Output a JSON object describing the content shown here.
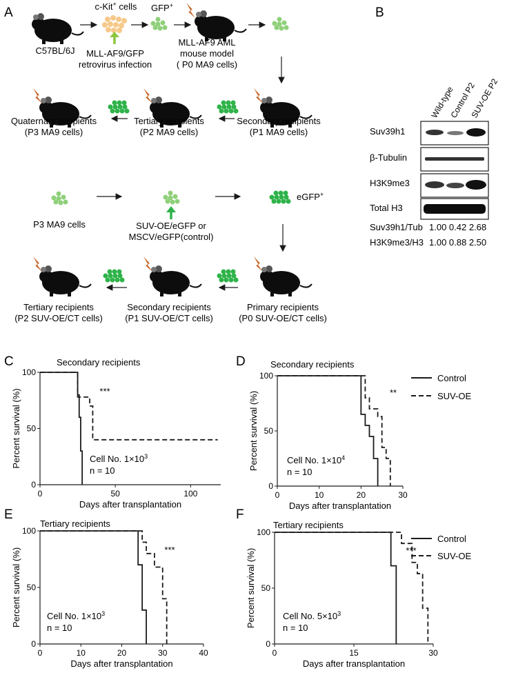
{
  "panel_letters": {
    "a": "A",
    "b": "B",
    "c": "C",
    "d": "D",
    "e": "E",
    "f": "F"
  },
  "schematic1": {
    "mouse_strain": "C57BL/6J",
    "ckit_label": "c-Kit",
    "ckit_sup": "+",
    "ckit_suffix": " cells",
    "gfp_label": "GFP",
    "gfp_sup": "+",
    "infection_line1": "MLL-AF9/GFP",
    "infection_line2": "retrovirus infection",
    "model_line1": "MLL-AF9 AML",
    "model_line2": "mouse model",
    "model_line3": "( P0 MA9 cells)",
    "secondary_line1": "Secondary recipients",
    "secondary_line2": "(P1 MA9 cells)",
    "tertiary_line1": "Tertiary recipients",
    "tertiary_line2": "(P2 MA9 cells)",
    "quaternary_line1": "Quaternary recipients",
    "quaternary_line2": "(P3 MA9 cells)"
  },
  "schematic2": {
    "p3_label": "P3 MA9 cells",
    "vector_line1": "SUV-OE/eGFP or",
    "vector_line2": "MSCV/eGFP(control)",
    "egfp_label": "eGFP",
    "egfp_sup": "+",
    "primary_line1": "Primary recipients",
    "primary_line2": "(P0 SUV-OE/CT cells)",
    "secondary_line1": "Secondary recipients",
    "secondary_line2": "(P1 SUV-OE/CT cells)",
    "tertiary_line1": "Tertiary recipients",
    "tertiary_line2": "(P2 SUV-OE/CT cells)"
  },
  "western": {
    "lanes": [
      "Wild-type",
      "Control  P2",
      "SUV-OE P2"
    ],
    "blots": [
      "Suv39h1",
      "β-Tubulin",
      "H3K9me3",
      "Total H3"
    ],
    "quant": [
      {
        "label": "Suv39h1/Tub",
        "values": "1.00 0.42 2.68"
      },
      {
        "label": "H3K9me3/H3",
        "values": "1.00 0.88 2.50"
      }
    ]
  },
  "legend": {
    "control": "Control",
    "suv": "SUV-OE"
  },
  "chart_data": [
    {
      "panel": "C",
      "type": "line",
      "title": "Secondary recipients",
      "xlabel": "Days after transplantation",
      "ylabel": "Percent survival (%)",
      "xlim": [
        0,
        120
      ],
      "ylim": [
        0,
        100
      ],
      "xticks": [
        0,
        50,
        100
      ],
      "yticks": [
        0,
        50,
        100
      ],
      "significance": "***",
      "cell_no": "Cell No. 1×10",
      "cell_exp": "3",
      "n": "n = 10",
      "series": [
        {
          "name": "Control",
          "style": "solid",
          "x": [
            0,
            25,
            25,
            26,
            27,
            28
          ],
          "y": [
            100,
            100,
            80,
            60,
            30,
            0
          ]
        },
        {
          "name": "SUV-OE",
          "style": "dashed",
          "x": [
            0,
            25,
            25,
            28,
            30,
            33,
            35,
            40,
            118
          ],
          "y": [
            100,
            100,
            78,
            78,
            78,
            70,
            40,
            40,
            40
          ]
        }
      ]
    },
    {
      "panel": "D",
      "type": "line",
      "title": "Secondary recipients",
      "xlabel": "Days after transplantation",
      "ylabel": "Percent survival (%)",
      "xlim": [
        0,
        30
      ],
      "ylim": [
        0,
        100
      ],
      "xticks": [
        0,
        10,
        20,
        30
      ],
      "yticks": [
        0,
        50,
        100
      ],
      "significance": "**",
      "cell_no": "Cell No. 1×10",
      "cell_exp": "4",
      "n": "n = 10",
      "series": [
        {
          "name": "Control",
          "style": "solid",
          "x": [
            0,
            19,
            20,
            21,
            22,
            23,
            24
          ],
          "y": [
            100,
            100,
            65,
            55,
            45,
            25,
            0
          ]
        },
        {
          "name": "SUV-OE",
          "style": "dashed",
          "x": [
            0,
            20,
            21,
            22,
            24,
            25,
            26,
            27
          ],
          "y": [
            100,
            100,
            80,
            70,
            63,
            35,
            25,
            0
          ]
        }
      ]
    },
    {
      "panel": "E",
      "type": "line",
      "title": "Tertiary recipients",
      "xlabel": "Days after transplantation",
      "ylabel": "Percent survival (%)",
      "xlim": [
        0,
        40
      ],
      "ylim": [
        0,
        100
      ],
      "xticks": [
        0,
        10,
        20,
        30,
        40
      ],
      "yticks": [
        0,
        50,
        100
      ],
      "significance": "***",
      "cell_no": "Cell No. 1×10",
      "cell_exp": "3",
      "n": "n = 10",
      "series": [
        {
          "name": "Control",
          "style": "solid",
          "x": [
            0,
            23,
            24,
            25,
            26
          ],
          "y": [
            100,
            100,
            70,
            30,
            0
          ]
        },
        {
          "name": "SUV-OE",
          "style": "dashed",
          "x": [
            0,
            24,
            25,
            26,
            28,
            30,
            31
          ],
          "y": [
            100,
            100,
            90,
            80,
            68,
            40,
            0
          ]
        }
      ]
    },
    {
      "panel": "F",
      "type": "line",
      "title": "Tertiary recipients",
      "xlabel": "Days after transplantation",
      "ylabel": "Percent survival (%)",
      "xlim": [
        0,
        30
      ],
      "ylim": [
        0,
        100
      ],
      "xticks": [
        0,
        15,
        30
      ],
      "yticks": [
        0,
        50,
        100
      ],
      "significance": "***",
      "cell_no": "Cell No. 5×10",
      "cell_exp": "3",
      "n": "n = 10",
      "series": [
        {
          "name": "Control",
          "style": "solid",
          "x": [
            0,
            21,
            22,
            23
          ],
          "y": [
            100,
            100,
            70,
            0
          ]
        },
        {
          "name": "SUV-OE",
          "style": "dashed",
          "x": [
            0,
            23,
            24,
            26,
            27,
            28,
            29
          ],
          "y": [
            100,
            100,
            90,
            73,
            63,
            32,
            0
          ]
        }
      ]
    }
  ]
}
